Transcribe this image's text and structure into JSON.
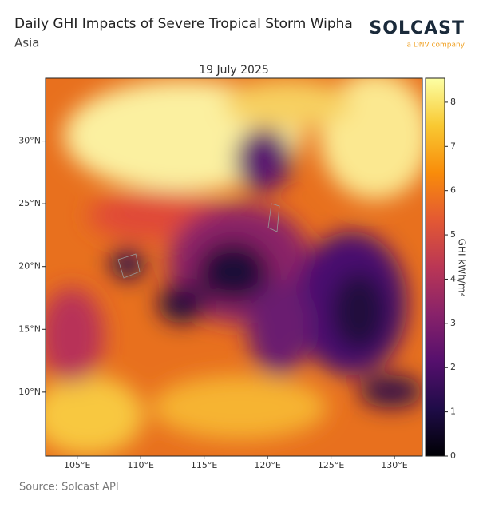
{
  "header": {
    "title": "Daily GHI Impacts of Severe Tropical Storm Wipha",
    "subtitle": "Asia"
  },
  "logo": {
    "name": "SOLCAST",
    "tagline": "a DNV company"
  },
  "map": {
    "title": "19 July 2025",
    "xlim": [
      102.5,
      132.2
    ],
    "ylim": [
      4.9,
      35.0
    ],
    "xticks": [
      {
        "value": 105,
        "label": "105°E"
      },
      {
        "value": 110,
        "label": "110°E"
      },
      {
        "value": 115,
        "label": "115°E"
      },
      {
        "value": 120,
        "label": "120°E"
      },
      {
        "value": 125,
        "label": "125°E"
      },
      {
        "value": 130,
        "label": "130°E"
      }
    ],
    "yticks": [
      {
        "value": 10,
        "label": "10°N"
      },
      {
        "value": 15,
        "label": "15°N"
      },
      {
        "value": 20,
        "label": "20°N"
      },
      {
        "value": 25,
        "label": "25°N"
      },
      {
        "value": 30,
        "label": "30°N"
      }
    ]
  },
  "colorbar": {
    "label": "GHI kWh/m²",
    "lim": [
      0,
      8.54
    ],
    "ticks": [
      0,
      1,
      2,
      3,
      4,
      5,
      6,
      7,
      8
    ],
    "colormap": [
      "#000004",
      "#1f0c48",
      "#550f6d",
      "#88226a",
      "#ba3655",
      "#e35933",
      "#f98c0a",
      "#f9c932",
      "#fcffa4"
    ]
  },
  "footer": {
    "source": "Source: Solcast API"
  }
}
